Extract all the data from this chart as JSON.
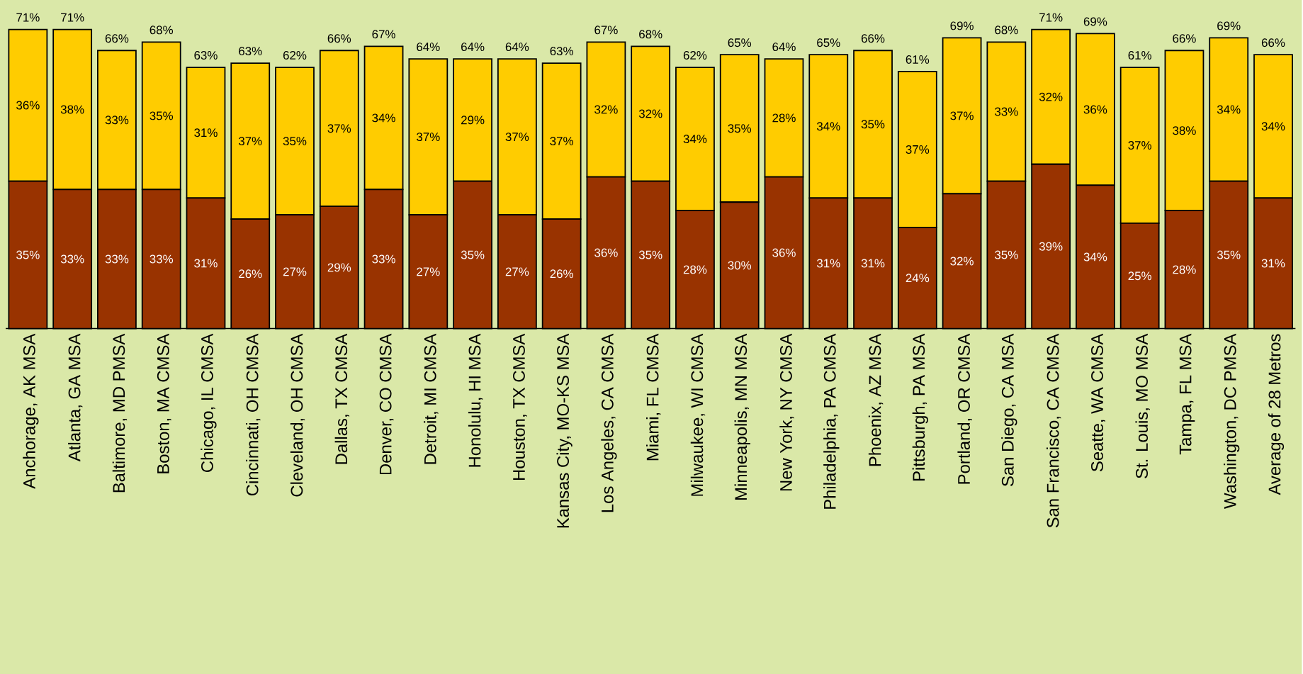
{
  "chart_data": {
    "type": "bar",
    "stacked": true,
    "categories": [
      "Anchorage, AK MSA",
      "Atlanta, GA MSA",
      "Baltimore, MD PMSA",
      "Boston, MA CMSA",
      "Chicago, IL CMSA",
      "Cincinnati, OH CMSA",
      "Cleveland, OH CMSA",
      "Dallas, TX CMSA",
      "Denver, CO CMSA",
      "Detroit, MI CMSA",
      "Honolulu, HI MSA",
      "Houston, TX CMSA",
      "Kansas City, MO-KS MSA",
      "Los Angeles, CA CMSA",
      "Miami, FL CMSA",
      "Milwaukee, WI CMSA",
      "Minneapolis, MN MSA",
      "New York, NY CMSA",
      "Philadelphia, PA CMSA",
      "Phoenix, AZ MSA",
      "Pittsburgh, PA MSA",
      "Portland, OR CMSA",
      "San Diego, CA MSA",
      "San Francisco, CA CMSA",
      "Seatte, WA CMSA",
      "St. Louis, MO MSA",
      "Tampa, FL MSA",
      "Washington, DC PMSA",
      "Average of 28 Metros"
    ],
    "series": [
      {
        "color": "#993300",
        "values": [
          35,
          33,
          33,
          33,
          31,
          26,
          27,
          29,
          33,
          27,
          35,
          27,
          26,
          36,
          35,
          28,
          30,
          36,
          31,
          31,
          24,
          32,
          35,
          39,
          34,
          25,
          28,
          35,
          31
        ],
        "value_labels": [
          "35%",
          "33%",
          "33%",
          "33%",
          "31%",
          "26%",
          "27%",
          "29%",
          "33%",
          "27%",
          "35%",
          "27%",
          "26%",
          "36%",
          "35%",
          "28%",
          "30%",
          "36%",
          "31%",
          "31%",
          "24%",
          "32%",
          "35%",
          "39%",
          "34%",
          "25%",
          "28%",
          "35%",
          "31%"
        ]
      },
      {
        "color": "#ffcc00",
        "values": [
          36,
          38,
          33,
          35,
          31,
          37,
          35,
          37,
          34,
          37,
          29,
          37,
          37,
          32,
          32,
          34,
          35,
          28,
          34,
          35,
          37,
          37,
          33,
          32,
          36,
          37,
          38,
          34,
          34
        ],
        "value_labels": [
          "36%",
          "38%",
          "33%",
          "35%",
          "31%",
          "37%",
          "35%",
          "37%",
          "34%",
          "37%",
          "29%",
          "37%",
          "37%",
          "32%",
          "32%",
          "34%",
          "35%",
          "28%",
          "34%",
          "35%",
          "37%",
          "37%",
          "33%",
          "32%",
          "36%",
          "37%",
          "38%",
          "34%",
          "34%"
        ]
      }
    ],
    "totals": [
      "71%",
      "71%",
      "66%",
      "68%",
      "63%",
      "63%",
      "62%",
      "66%",
      "67%",
      "64%",
      "64%",
      "64%",
      "63%",
      "67%",
      "68%",
      "62%",
      "65%",
      "64%",
      "65%",
      "66%",
      "61%",
      "69%",
      "68%",
      "71%",
      "69%",
      "61%",
      "66%",
      "69%",
      "66%"
    ]
  }
}
